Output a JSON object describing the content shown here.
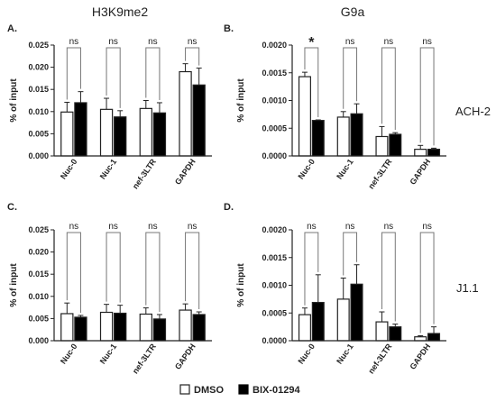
{
  "column_titles": [
    "H3K9me2",
    "G9a"
  ],
  "row_labels": [
    "ACH-2",
    "J1.1"
  ],
  "legend": [
    {
      "name": "DMSO",
      "fill": "#ffffff"
    },
    {
      "name": "BIX-01294",
      "fill": "#000000"
    }
  ],
  "colors": {
    "dmso": "#ffffff",
    "bix": "#000000",
    "axis": "#222222"
  },
  "chart_data": [
    {
      "type": "bar",
      "panel": "A.",
      "ylabel": "% of input",
      "ylim": [
        0,
        0.025
      ],
      "ticks": [
        "0.000",
        "0.005",
        "0.010",
        "0.015",
        "0.020",
        "0.025"
      ],
      "categories": [
        "Nuc-0",
        "Nuc-1",
        "nef-3LTR",
        "GAPDH"
      ],
      "series": [
        {
          "name": "DMSO",
          "values": [
            0.0099,
            0.0105,
            0.0107,
            0.019
          ],
          "errors": [
            0.0022,
            0.0025,
            0.0018,
            0.0018
          ]
        },
        {
          "name": "BIX-01294",
          "values": [
            0.012,
            0.0088,
            0.0097,
            0.016
          ],
          "errors": [
            0.0025,
            0.0014,
            0.0023,
            0.0038
          ]
        }
      ],
      "significance": [
        "ns",
        "ns",
        "ns",
        "ns"
      ]
    },
    {
      "type": "bar",
      "panel": "B.",
      "ylabel": "% of input",
      "ylim": [
        0,
        0.002
      ],
      "ticks": [
        "0.0000",
        "0.0005",
        "0.0010",
        "0.0015",
        "0.0020"
      ],
      "categories": [
        "Nuc-0",
        "Nuc-1",
        "nef-3LTR",
        "GAPDH"
      ],
      "series": [
        {
          "name": "DMSO",
          "values": [
            0.00143,
            0.0007,
            0.00035,
            0.00012
          ],
          "errors": [
            8e-05,
            0.0001,
            0.00018,
            7e-05
          ]
        },
        {
          "name": "BIX-01294",
          "values": [
            0.00064,
            0.00076,
            0.00039,
            0.00012
          ],
          "errors": [
            1e-05,
            0.00018,
            3e-05,
            2e-05
          ]
        }
      ],
      "significance": [
        "*",
        "ns",
        "ns",
        "ns"
      ]
    },
    {
      "type": "bar",
      "panel": "C.",
      "ylabel": "% of input",
      "ylim": [
        0,
        0.025
      ],
      "ticks": [
        "0.000",
        "0.005",
        "0.010",
        "0.015",
        "0.020",
        "0.025"
      ],
      "categories": [
        "Nuc-0",
        "Nuc-1",
        "nef-3LTR",
        "GAPDH"
      ],
      "series": [
        {
          "name": "DMSO",
          "values": [
            0.0061,
            0.0064,
            0.006,
            0.0069
          ],
          "errors": [
            0.0024,
            0.0018,
            0.0014,
            0.0014
          ]
        },
        {
          "name": "BIX-01294",
          "values": [
            0.0053,
            0.0062,
            0.0049,
            0.0059
          ],
          "errors": [
            0.0004,
            0.0018,
            0.001,
            0.0006
          ]
        }
      ],
      "significance": [
        "ns",
        "ns",
        "ns",
        "ns"
      ]
    },
    {
      "type": "bar",
      "panel": "D.",
      "ylabel": "% of input",
      "ylim": [
        0,
        0.002
      ],
      "ticks": [
        "0.0000",
        "0.0005",
        "0.0010",
        "0.0015",
        "0.0020"
      ],
      "categories": [
        "Nuc-0",
        "Nuc-1",
        "nef-3LTR",
        "GAPDH"
      ],
      "series": [
        {
          "name": "DMSO",
          "values": [
            0.00047,
            0.00075,
            0.00034,
            7e-05
          ],
          "errors": [
            0.00012,
            0.00038,
            0.00018,
            2e-05
          ]
        },
        {
          "name": "BIX-01294",
          "values": [
            0.00069,
            0.00102,
            0.00025,
            0.00013
          ],
          "errors": [
            0.0005,
            0.00035,
            5e-05,
            0.00012
          ]
        }
      ],
      "significance": [
        "ns",
        "ns",
        "ns",
        "ns"
      ]
    }
  ]
}
